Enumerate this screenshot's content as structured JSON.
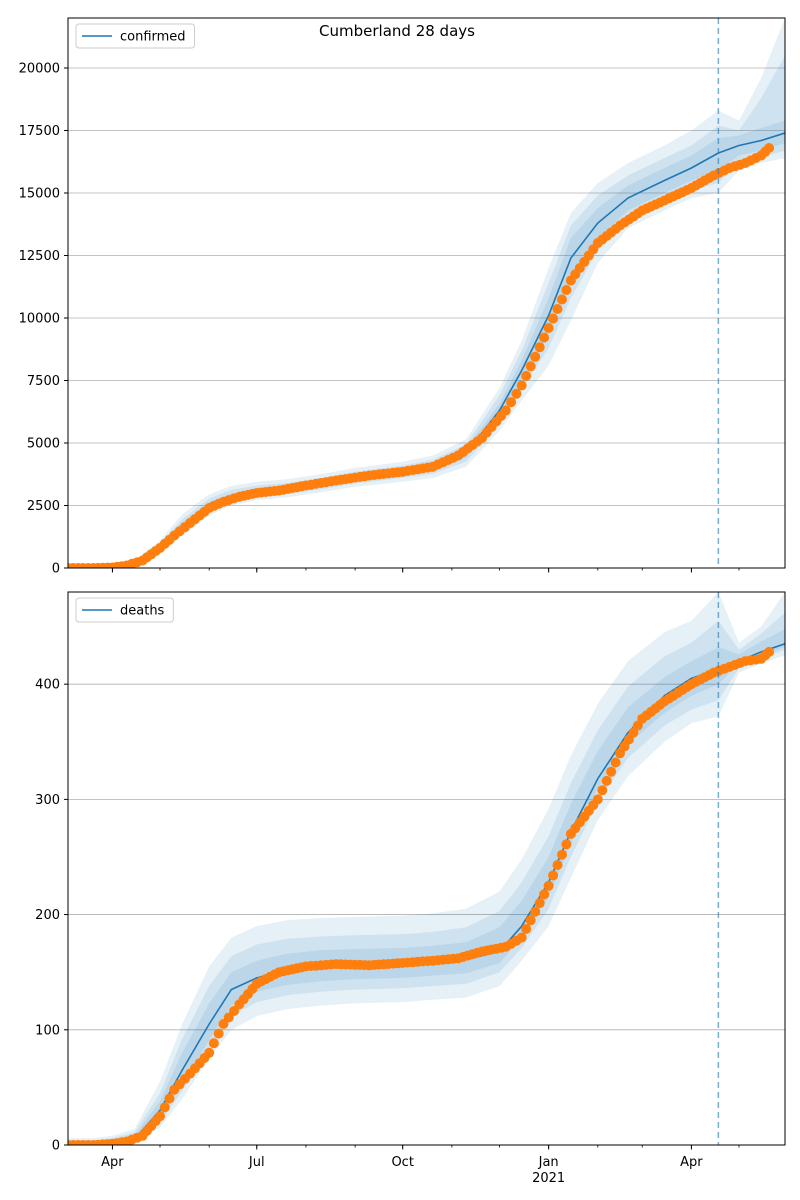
{
  "title": "Cumberland 28 days",
  "colors": {
    "fit_line": "#1f77b4",
    "observed": "#ff7f0e",
    "band": "#1f77b4",
    "grid": "#b0b0b0",
    "forecast_line": "#1f77b4"
  },
  "x_ticks": [
    {
      "date": "2020-04-01",
      "label": "Apr",
      "sub": ""
    },
    {
      "date": "2020-07-01",
      "label": "Jul",
      "sub": ""
    },
    {
      "date": "2020-10-01",
      "label": "Oct",
      "sub": ""
    },
    {
      "date": "2021-01-01",
      "label": "Jan",
      "sub": "2021"
    },
    {
      "date": "2021-04-01",
      "label": "Apr",
      "sub": ""
    }
  ],
  "chart_data": [
    {
      "type": "line",
      "legend": "confirmed",
      "legend_position": "top-left",
      "grid": "horizontal",
      "xlim": [
        "2020-03-04",
        "2021-05-30"
      ],
      "ylim": [
        0,
        22000
      ],
      "y_ticks": [
        0,
        2500,
        5000,
        7500,
        10000,
        12500,
        15000,
        17500,
        20000
      ],
      "forecast_start": "2021-04-18",
      "fit": {
        "x": [
          "2020-03-04",
          "2020-03-20",
          "2020-04-01",
          "2020-04-15",
          "2020-05-01",
          "2020-05-15",
          "2020-06-01",
          "2020-06-15",
          "2020-07-01",
          "2020-07-20",
          "2020-08-10",
          "2020-09-01",
          "2020-10-01",
          "2020-10-20",
          "2020-11-10",
          "2020-12-01",
          "2020-12-15",
          "2021-01-01",
          "2021-01-15",
          "2021-02-01",
          "2021-02-20",
          "2021-03-15",
          "2021-04-01",
          "2021-04-18",
          "2021-05-01",
          "2021-05-15",
          "2021-05-30"
        ],
        "y": [
          0,
          10,
          50,
          200,
          800,
          1700,
          2500,
          2850,
          3050,
          3150,
          3350,
          3600,
          3850,
          4050,
          4600,
          6300,
          7900,
          10100,
          12400,
          13800,
          14800,
          15500,
          16000,
          16600,
          16900,
          17100,
          17400
        ]
      },
      "bands": [
        {
          "lower": [
            0,
            5,
            30,
            120,
            550,
            1300,
            2100,
            2500,
            2720,
            2830,
            3020,
            3250,
            3450,
            3600,
            4050,
            5500,
            6700,
            8100,
            9900,
            12200,
            13600,
            14300,
            14800,
            15000,
            15900,
            16200,
            16400
          ],
          "upper": [
            0,
            20,
            80,
            300,
            1100,
            2150,
            2950,
            3280,
            3450,
            3550,
            3750,
            4000,
            4250,
            4500,
            5150,
            7200,
            9100,
            12000,
            14200,
            15400,
            16200,
            16900,
            17500,
            18300,
            17900,
            19600,
            22000
          ]
        },
        {
          "lower": [
            0,
            7,
            38,
            150,
            650,
            1450,
            2250,
            2630,
            2840,
            2950,
            3140,
            3380,
            3600,
            3770,
            4250,
            5800,
            7150,
            8800,
            10800,
            12700,
            13900,
            14600,
            15100,
            15400,
            16200,
            16400,
            16700
          ],
          "upper": [
            0,
            16,
            68,
            260,
            980,
            1950,
            2780,
            3120,
            3300,
            3400,
            3600,
            3850,
            4100,
            4330,
            4950,
            6900,
            8700,
            11400,
            13700,
            14900,
            15700,
            16400,
            16900,
            17700,
            17500,
            18800,
            20500
          ]
        },
        {
          "lower": [
            0,
            8,
            43,
            170,
            710,
            1560,
            2360,
            2730,
            2940,
            3040,
            3240,
            3480,
            3720,
            3900,
            4420,
            6030,
            7500,
            9400,
            11500,
            13200,
            14300,
            15000,
            15500,
            15900,
            16500,
            16700,
            17000
          ],
          "upper": [
            0,
            13,
            58,
            230,
            890,
            1840,
            2640,
            2970,
            3160,
            3260,
            3460,
            3720,
            3980,
            4200,
            4780,
            6570,
            8300,
            10800,
            13200,
            14400,
            15300,
            16000,
            16500,
            17200,
            17300,
            17600,
            17900
          ]
        }
      ],
      "observed": {
        "x": [
          "2020-03-04",
          "2020-03-20",
          "2020-04-01",
          "2020-04-10",
          "2020-04-20",
          "2020-05-01",
          "2020-05-10",
          "2020-05-20",
          "2020-06-01",
          "2020-06-10",
          "2020-06-20",
          "2020-07-01",
          "2020-07-15",
          "2020-08-01",
          "2020-08-20",
          "2020-09-10",
          "2020-10-01",
          "2020-10-20",
          "2020-11-05",
          "2020-11-20",
          "2020-12-05",
          "2020-12-15",
          "2021-01-01",
          "2021-01-15",
          "2021-02-01",
          "2021-02-15",
          "2021-03-01",
          "2021-03-15",
          "2021-04-01",
          "2021-04-15",
          "2021-04-25",
          "2021-05-05",
          "2021-05-15",
          "2021-05-20"
        ],
        "y": [
          0,
          0,
          20,
          100,
          300,
          800,
          1300,
          1800,
          2400,
          2650,
          2850,
          3000,
          3100,
          3300,
          3500,
          3700,
          3850,
          4050,
          4500,
          5200,
          6300,
          7300,
          9600,
          11500,
          13000,
          13700,
          14300,
          14700,
          15200,
          15700,
          16000,
          16200,
          16500,
          16800
        ]
      }
    },
    {
      "type": "line",
      "legend": "deaths",
      "legend_position": "top-left",
      "grid": "horizontal",
      "xlim": [
        "2020-03-04",
        "2021-05-30"
      ],
      "ylim": [
        0,
        480
      ],
      "y_ticks": [
        0,
        100,
        200,
        300,
        400
      ],
      "forecast_start": "2021-04-18",
      "fit": {
        "x": [
          "2020-03-04",
          "2020-03-20",
          "2020-04-01",
          "2020-04-15",
          "2020-05-01",
          "2020-05-15",
          "2020-06-01",
          "2020-06-15",
          "2020-07-01",
          "2020-07-20",
          "2020-08-10",
          "2020-09-01",
          "2020-10-01",
          "2020-10-20",
          "2020-11-10",
          "2020-12-01",
          "2020-12-15",
          "2021-01-01",
          "2021-01-15",
          "2021-02-01",
          "2021-02-20",
          "2021-03-15",
          "2021-04-01",
          "2021-04-18",
          "2021-05-01",
          "2021-05-15",
          "2021-05-30"
        ],
        "y": [
          0,
          0,
          1,
          5,
          30,
          65,
          105,
          135,
          145,
          152,
          156,
          157,
          158,
          159,
          161,
          168,
          190,
          228,
          272,
          318,
          358,
          390,
          405,
          413,
          420,
          428,
          435
        ]
      },
      "bands": [
        {
          "lower": [
            0,
            0,
            0,
            2,
            15,
            40,
            75,
            100,
            112,
            118,
            121,
            123,
            124,
            126,
            128,
            138,
            160,
            190,
            232,
            282,
            320,
            350,
            366,
            372,
            410,
            418,
            425
          ],
          "upper": [
            6,
            6,
            8,
            14,
            55,
            105,
            155,
            180,
            190,
            195,
            197,
            198,
            199,
            201,
            205,
            220,
            248,
            292,
            338,
            383,
            420,
            445,
            455,
            480,
            436,
            450,
            480
          ]
        },
        {
          "lower": [
            0,
            0,
            0,
            3,
            20,
            47,
            84,
            112,
            124,
            130,
            133,
            135,
            136,
            138,
            140,
            150,
            171,
            205,
            250,
            298,
            336,
            364,
            378,
            386,
            414,
            422,
            430
          ],
          "upper": [
            4,
            4,
            6,
            11,
            45,
            92,
            138,
            164,
            174,
            179,
            181,
            182,
            183,
            185,
            189,
            203,
            228,
            268,
            314,
            360,
            398,
            424,
            436,
            455,
            430,
            444,
            462
          ]
        },
        {
          "lower": [
            0,
            0,
            1,
            3,
            23,
            53,
            91,
            121,
            133,
            139,
            142,
            144,
            145,
            147,
            149,
            158,
            180,
            215,
            262,
            310,
            348,
            375,
            390,
            400,
            418,
            425,
            432
          ],
          "upper": [
            2,
            2,
            3,
            8,
            38,
            80,
            123,
            150,
            160,
            166,
            169,
            170,
            171,
            173,
            176,
            189,
            212,
            250,
            296,
            342,
            380,
            406,
            420,
            432,
            426,
            437,
            448
          ]
        }
      ],
      "observed": {
        "x": [
          "2020-03-04",
          "2020-03-20",
          "2020-04-01",
          "2020-04-10",
          "2020-04-20",
          "2020-05-01",
          "2020-05-10",
          "2020-05-20",
          "2020-06-01",
          "2020-06-10",
          "2020-06-20",
          "2020-07-01",
          "2020-07-15",
          "2020-08-01",
          "2020-08-20",
          "2020-09-10",
          "2020-10-01",
          "2020-10-20",
          "2020-11-05",
          "2020-11-20",
          "2020-12-05",
          "2020-12-15",
          "2021-01-01",
          "2021-01-15",
          "2021-02-01",
          "2021-02-15",
          "2021-03-01",
          "2021-03-15",
          "2021-04-01",
          "2021-04-15",
          "2021-04-25",
          "2021-05-05",
          "2021-05-15",
          "2021-05-20"
        ],
        "y": [
          0,
          0,
          1,
          3,
          8,
          25,
          48,
          62,
          80,
          105,
          122,
          140,
          150,
          155,
          157,
          156,
          158,
          160,
          162,
          168,
          172,
          180,
          225,
          270,
          300,
          340,
          370,
          385,
          400,
          410,
          415,
          420,
          422,
          428
        ]
      }
    }
  ]
}
